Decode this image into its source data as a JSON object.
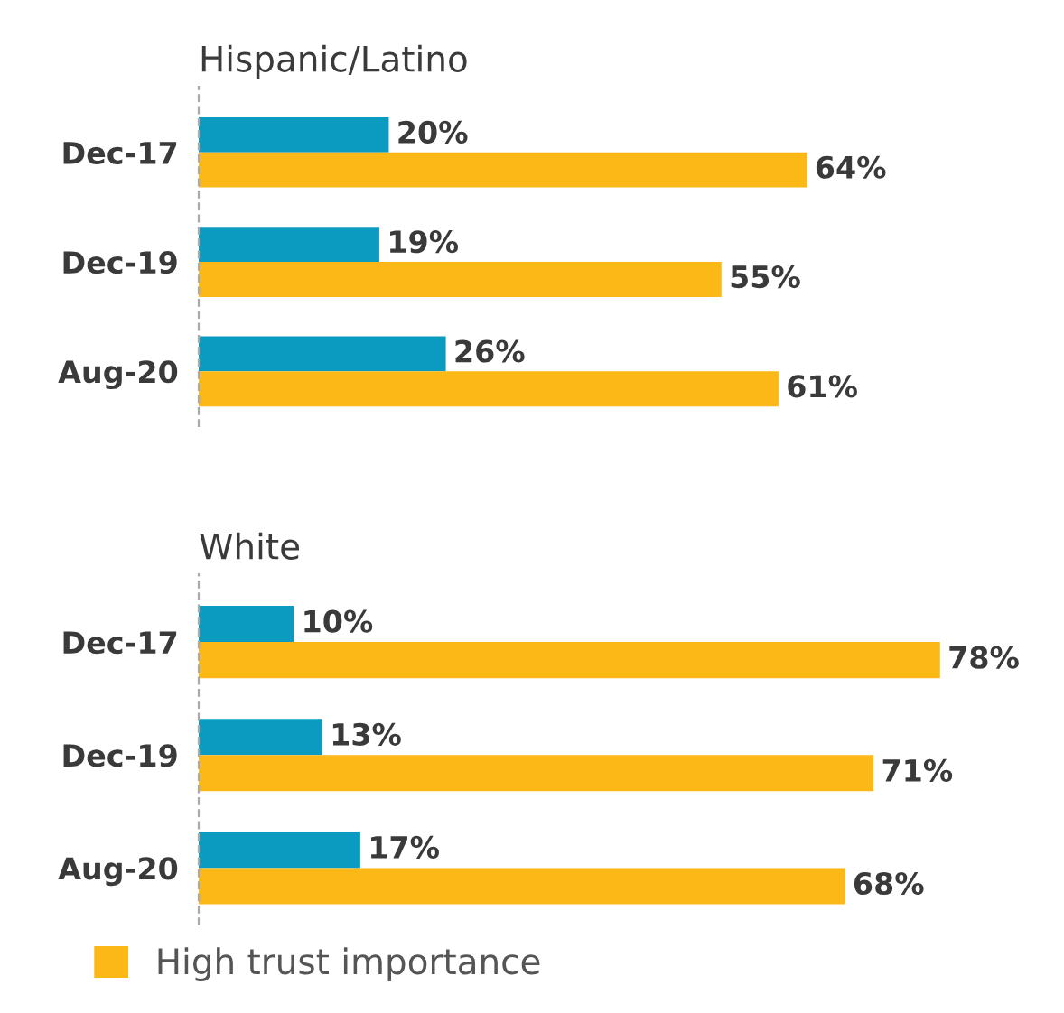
{
  "chart_data": [
    {
      "type": "bar",
      "orientation": "horizontal",
      "title": "Hispanic/Latino",
      "categories": [
        "Dec-17",
        "Dec-19",
        "Aug-20"
      ],
      "grid": false,
      "series": [
        {
          "color": "#0b9bc1",
          "values": [
            20,
            19,
            26
          ],
          "value_labels": [
            "20%",
            "19%",
            "26%"
          ]
        },
        {
          "color": "#fbb817",
          "values": [
            64,
            55,
            61
          ],
          "value_labels": [
            "64%",
            "55%",
            "61%"
          ]
        }
      ]
    },
    {
      "type": "bar",
      "orientation": "horizontal",
      "title": "White",
      "categories": [
        "Dec-17",
        "Dec-19",
        "Aug-20"
      ],
      "grid": false,
      "legend": "bottom",
      "series": [
        {
          "color": "#0b9bc1",
          "values": [
            10,
            13,
            17
          ],
          "value_labels": [
            "10%",
            "13%",
            "17%"
          ]
        },
        {
          "name": "High trust importance",
          "color": "#fbb817",
          "values": [
            78,
            71,
            68
          ],
          "value_labels": [
            "78%",
            "71%",
            "68%"
          ]
        }
      ]
    }
  ]
}
